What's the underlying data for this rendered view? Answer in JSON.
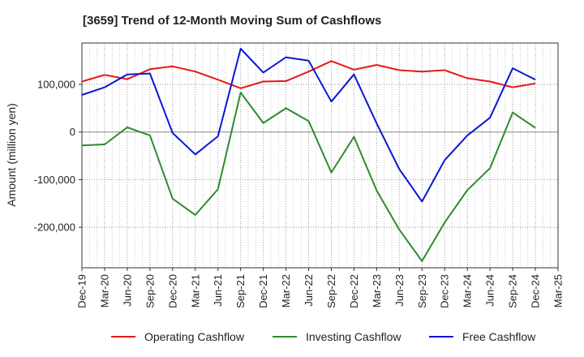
{
  "chart_data": {
    "type": "line",
    "title": "[3659]  Trend of 12-Month Moving Sum of Cashflows",
    "ylabel": "Amount (million yen)",
    "xlabel": "",
    "x": [
      "Dec-19",
      "Mar-20",
      "Jun-20",
      "Sep-20",
      "Dec-20",
      "Mar-21",
      "Jun-21",
      "Sep-21",
      "Dec-21",
      "Mar-22",
      "Jun-22",
      "Sep-22",
      "Dec-22",
      "Mar-23",
      "Jun-23",
      "Sep-23",
      "Dec-23",
      "Mar-24",
      "Jun-24",
      "Sep-24",
      "Dec-24",
      "Mar-25"
    ],
    "ylim": [
      -285000,
      187000
    ],
    "yticks": [
      -200000,
      -100000,
      0,
      100000
    ],
    "ytick_labels": [
      "-200,000",
      "-100,000",
      "0",
      "100,000"
    ],
    "grid": true,
    "legend_position": "bottom",
    "series": [
      {
        "name": "Operating Cashflow",
        "color": "#e41a1c",
        "values": [
          106000,
          120000,
          111000,
          132000,
          138000,
          127000,
          110000,
          92000,
          106000,
          107000,
          127000,
          149000,
          131000,
          141000,
          130000,
          127000,
          130000,
          113000,
          106000,
          94000,
          102000,
          null
        ]
      },
      {
        "name": "Investing Cashflow",
        "color": "#2e8b2e",
        "values": [
          -28000,
          -26000,
          10000,
          -7000,
          -140000,
          -174000,
          -120000,
          83000,
          19000,
          50000,
          23000,
          -85000,
          -10000,
          -123000,
          -205000,
          -271000,
          -190000,
          -122000,
          -76000,
          41000,
          9000,
          null
        ]
      },
      {
        "name": "Free Cashflow",
        "color": "#0b17d6",
        "values": [
          78000,
          94000,
          121000,
          123000,
          -2000,
          -47000,
          -9000,
          175000,
          125000,
          157000,
          150000,
          64000,
          121000,
          18000,
          -78000,
          -146000,
          -59000,
          -7000,
          30000,
          134000,
          110000,
          null
        ]
      }
    ]
  }
}
